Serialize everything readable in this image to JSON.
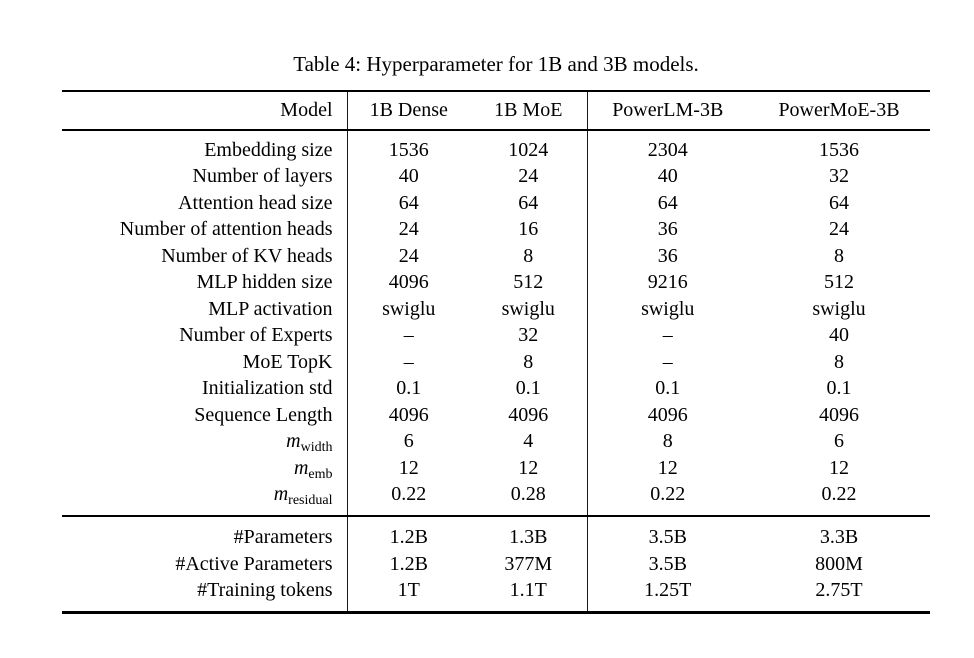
{
  "title": "Table 4: Hyperparameter for 1B and 3B models.",
  "table": {
    "header": [
      "Model",
      "1B Dense",
      "1B MoE",
      "PowerLM-3B",
      "PowerMoE-3B"
    ],
    "rows": [
      {
        "label": "Embedding size",
        "values": [
          "1536",
          "1024",
          "2304",
          "1536"
        ]
      },
      {
        "label": "Number of layers",
        "values": [
          "40",
          "24",
          "40",
          "32"
        ]
      },
      {
        "label": "Attention head size",
        "values": [
          "64",
          "64",
          "64",
          "64"
        ]
      },
      {
        "label": "Number of attention heads",
        "values": [
          "24",
          "16",
          "36",
          "24"
        ]
      },
      {
        "label": "Number of KV heads",
        "values": [
          "24",
          "8",
          "36",
          "8"
        ]
      },
      {
        "label": "MLP hidden size",
        "values": [
          "4096",
          "512",
          "9216",
          "512"
        ]
      },
      {
        "label": "MLP activation",
        "values": [
          "swiglu",
          "swiglu",
          "swiglu",
          "swiglu"
        ]
      },
      {
        "label": "Number of Experts",
        "values": [
          "–",
          "32",
          "–",
          "40"
        ]
      },
      {
        "label": "MoE TopK",
        "values": [
          "–",
          "8",
          "–",
          "8"
        ]
      },
      {
        "label": "Initialization std",
        "values": [
          "0.1",
          "0.1",
          "0.1",
          "0.1"
        ]
      },
      {
        "label": "Sequence Length",
        "values": [
          "4096",
          "4096",
          "4096",
          "4096"
        ]
      },
      {
        "label": {
          "var": "m",
          "sub": "width"
        },
        "values": [
          "6",
          "4",
          "8",
          "6"
        ]
      },
      {
        "label": {
          "var": "m",
          "sub": "emb"
        },
        "values": [
          "12",
          "12",
          "12",
          "12"
        ]
      },
      {
        "label": {
          "var": "m",
          "sub": "residual"
        },
        "values": [
          "0.22",
          "0.28",
          "0.22",
          "0.22"
        ]
      }
    ],
    "summary_rows": [
      {
        "label": "#Parameters",
        "values": [
          "1.2B",
          "1.3B",
          "3.5B",
          "3.3B"
        ]
      },
      {
        "label": "#Active Parameters",
        "values": [
          "1.2B",
          "377M",
          "3.5B",
          "800M"
        ]
      },
      {
        "label": "#Training tokens",
        "values": [
          "1T",
          "1.1T",
          "1.25T",
          "2.75T"
        ]
      }
    ]
  }
}
